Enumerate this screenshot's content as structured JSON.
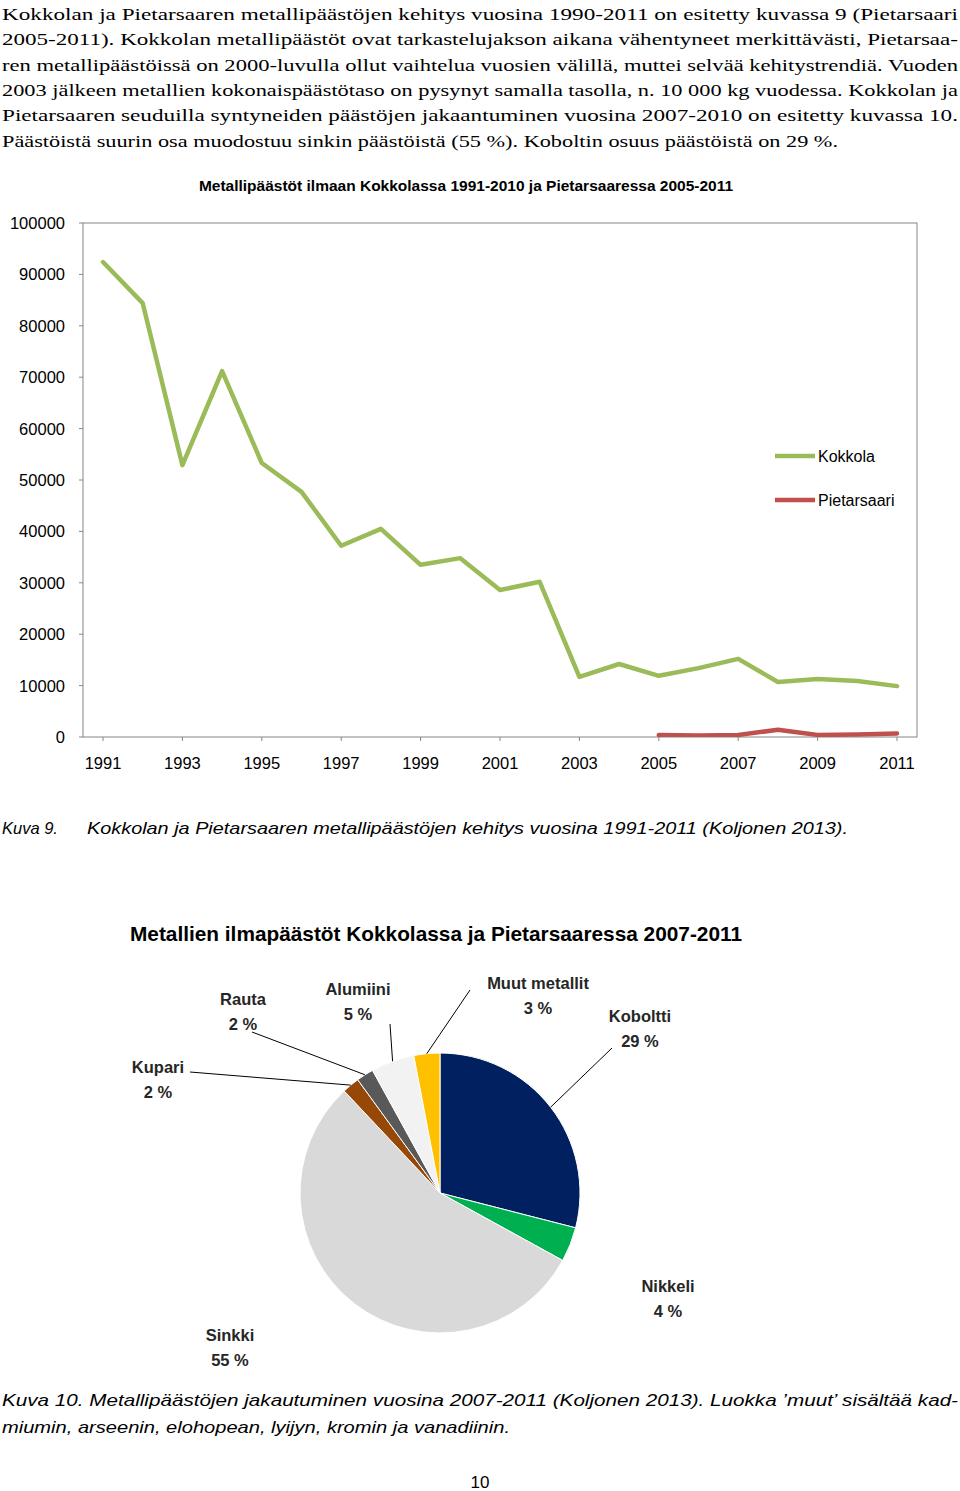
{
  "body_lines": [
    "Kokkolan ja Pietarsaaren metallipäästöjen kehitys vuosina 1990-2011 on esitetty kuvassa 9 (Pietarsaari",
    "2005-2011). Kokkolan metallipäästöt ovat tarkastelujakson aikana vähentyneet merkittävästi, Pietarsaa-",
    "ren metallipäästöissä on 2000-luvulla ollut vaihtelua vuosien välillä, muttei selvää kehitystrendiä. Vuoden",
    "2003 jälkeen metallien kokonaispäästötaso on pysynyt samalla tasolla, n. 10 000 kg vuodessa. Kokkolan ja",
    "Pietarsaaren seuduilla syntyneiden päästöjen jakaantuminen vuosina 2007-2010 on esitetty kuvassa 10.",
    "Päästöistä suurin osa muodostuu sinkin päästöistä (55 %). Koboltin osuus päästöistä on 29 %."
  ],
  "chart_data": [
    {
      "type": "line",
      "title": "Metallipäästöt ilmaan Kokkolassa 1991-2010 ja Pietarsaaressa 2005-2011",
      "x": [
        1991,
        1992,
        1993,
        1994,
        1995,
        1996,
        1997,
        1998,
        1999,
        2000,
        2001,
        2002,
        2003,
        2004,
        2005,
        2006,
        2007,
        2008,
        2009,
        2010,
        2011
      ],
      "xlim": [
        1991,
        2011
      ],
      "xticks": [
        1991,
        1993,
        1995,
        1997,
        1999,
        2001,
        2003,
        2005,
        2007,
        2009,
        2011
      ],
      "ylim": [
        0,
        100000
      ],
      "yticks": [
        0,
        10000,
        20000,
        30000,
        40000,
        50000,
        60000,
        70000,
        80000,
        90000,
        100000
      ],
      "grid": false,
      "legend": "right",
      "series": [
        {
          "name": "Kokkola",
          "color": "#9bbb59",
          "values": [
            92400,
            84400,
            52900,
            71200,
            53300,
            47700,
            37200,
            40500,
            33500,
            34800,
            28600,
            30200,
            11700,
            14200,
            11900,
            13400,
            15200,
            10700,
            11300,
            10900,
            9900
          ]
        },
        {
          "name": "Pietarsaari",
          "color": "#c0504d",
          "values": [
            null,
            null,
            null,
            null,
            null,
            null,
            null,
            null,
            null,
            null,
            null,
            null,
            null,
            null,
            400,
            300,
            400,
            1400,
            400,
            500,
            700
          ]
        }
      ]
    },
    {
      "type": "pie",
      "title": "Metallien ilmapäästöt Kokkolassa ja Pietarsaaressa 2007-2011",
      "categories": [
        "Koboltti",
        "Nikkeli",
        "Sinkki",
        "Kupari",
        "Rauta",
        "Alumiini",
        "Muut metallit"
      ],
      "values": [
        29,
        4,
        55,
        2,
        2,
        5,
        3
      ],
      "value_labels": [
        "29 %",
        "4 %",
        "55 %",
        "2 %",
        "2 %",
        "5 %",
        "3 %"
      ],
      "colors": [
        "#002060",
        "#00b050",
        "#d9d9d9",
        "#974706",
        "#595959",
        "#f2f2f2",
        "#ffc000"
      ],
      "data_labels": true
    }
  ],
  "captions": [
    {
      "label": "Kuva 9.",
      "text": "Kokkolan ja Pietarsaaren metallipäästöjen kehitys vuosina 1991-2011 (Koljonen 2013)."
    },
    {
      "lines": [
        "Kuva 10. Metallipäästöjen jakautuminen vuosina 2007-2011 (Koljonen 2013). Luokka ’muut’ sisältää kad-",
        "miumin, arseenin, elohopean, lyijyn, kromin ja vanadiinin."
      ]
    }
  ],
  "page_number": 10
}
